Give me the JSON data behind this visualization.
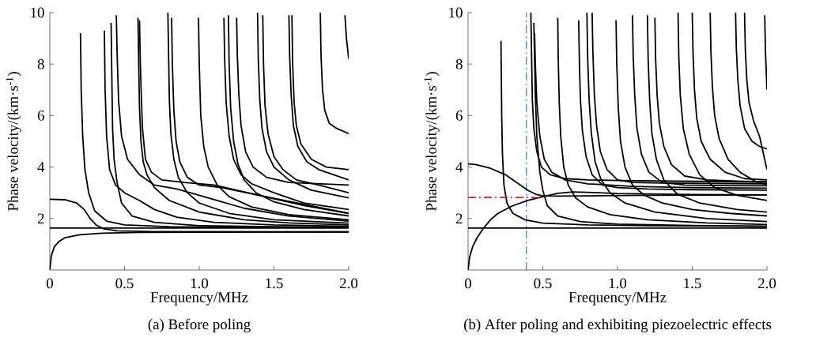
{
  "chart_data": [
    {
      "type": "line",
      "title": "(a) Before poling",
      "xlabel": "Frequency/MHz",
      "ylabel": "Phase velocity/(km·s$^{-1}$)",
      "color": "#000000",
      "xlim": [
        0,
        2
      ],
      "ylim": [
        0,
        10
      ],
      "xticks": [
        {
          "value": 0,
          "label": "0"
        },
        {
          "value": 0.5,
          "label": "0.5"
        },
        {
          "value": 1.0,
          "label": "1.0"
        },
        {
          "value": 1.5,
          "label": "1.5"
        },
        {
          "value": 2.0,
          "label": "2.0"
        }
      ],
      "yticks": [
        2,
        4,
        6,
        8,
        10
      ],
      "series": [
        {
          "x": [
            0,
            2
          ],
          "values": [
            1.63,
            1.63
          ]
        },
        {
          "x": [
            0,
            0.01,
            0.03,
            0.06,
            0.1,
            0.2,
            0.35,
            0.6,
            1.0,
            2.0
          ],
          "values": [
            0,
            0.55,
            0.9,
            1.1,
            1.25,
            1.37,
            1.43,
            1.46,
            1.47,
            1.48
          ]
        },
        {
          "x": [
            0,
            0.1,
            0.18,
            0.23,
            0.27,
            0.31,
            0.36,
            0.45,
            0.7,
            2.0
          ],
          "values": [
            2.75,
            2.73,
            2.6,
            2.35,
            2.0,
            1.75,
            1.6,
            1.52,
            1.49,
            1.48
          ]
        },
        {
          "x": [
            0.205,
            0.21,
            0.22,
            0.235,
            0.26,
            0.3,
            0.38,
            0.5,
            0.8,
            1.2,
            2.0
          ],
          "values": [
            9.2,
            7.0,
            5.2,
            3.9,
            3.0,
            2.3,
            1.9,
            1.75,
            1.68,
            1.66,
            1.65
          ]
        },
        {
          "x": [
            0.365,
            0.37,
            0.38,
            0.4,
            0.44,
            0.5,
            0.6,
            0.7,
            0.85,
            1.1,
            1.5,
            2.0
          ],
          "values": [
            9.3,
            7.0,
            5.2,
            3.9,
            3.3,
            3.0,
            2.7,
            2.35,
            2.05,
            1.85,
            1.75,
            1.7
          ]
        },
        {
          "x": [
            0.41,
            0.415,
            0.42,
            0.43,
            0.45,
            0.48,
            0.55,
            0.7,
            1.0,
            1.5,
            2.0
          ],
          "values": [
            9.6,
            7.5,
            5.5,
            4.3,
            3.4,
            2.6,
            2.1,
            1.85,
            1.72,
            1.68,
            1.66
          ]
        },
        {
          "x": [
            0.445,
            0.45,
            0.46,
            0.48,
            0.52,
            0.6,
            0.7,
            0.85,
            1.0,
            1.3,
            1.6,
            2.0
          ],
          "values": [
            9.9,
            8.5,
            6.6,
            5.2,
            4.3,
            3.7,
            3.3,
            3.15,
            2.9,
            2.4,
            2.1,
            1.9
          ]
        },
        {
          "x": [
            0.59,
            0.595,
            0.6,
            0.61,
            0.625,
            0.65,
            0.7,
            0.8,
            1.0,
            1.3,
            1.6,
            2.0
          ],
          "values": [
            9.8,
            8.0,
            6.3,
            5.0,
            4.2,
            3.7,
            3.2,
            2.7,
            2.25,
            1.95,
            1.83,
            1.75
          ]
        },
        {
          "x": [
            0.6,
            0.605,
            0.612,
            0.62,
            0.64,
            0.68,
            0.75,
            0.9,
            1.1,
            1.4,
            2.0
          ],
          "values": [
            9.7,
            8.2,
            6.8,
            5.5,
            4.3,
            3.8,
            3.5,
            3.4,
            3.3,
            2.9,
            2.2
          ]
        },
        {
          "x": [
            0.79,
            0.795,
            0.8,
            0.81,
            0.83,
            0.86,
            0.92,
            1.0,
            1.2,
            1.5,
            2.0
          ],
          "values": [
            10,
            8.3,
            6.6,
            5.3,
            4.3,
            3.6,
            3.0,
            2.6,
            2.2,
            1.95,
            1.82
          ]
        },
        {
          "x": [
            0.815,
            0.82,
            0.83,
            0.845,
            0.87,
            0.92,
            1.0,
            1.15,
            1.4,
            1.7,
            2.0
          ],
          "values": [
            9.8,
            8.0,
            6.2,
            5.0,
            4.2,
            3.6,
            3.3,
            3.2,
            2.9,
            2.5,
            2.2
          ]
        },
        {
          "x": [
            0.995,
            1.0,
            1.01,
            1.03,
            1.06,
            1.12,
            1.2,
            1.35,
            1.6,
            2.0
          ],
          "values": [
            9.8,
            8.0,
            6.0,
            4.8,
            4.0,
            3.3,
            2.85,
            2.45,
            2.15,
            1.95
          ]
        },
        {
          "x": [
            1.165,
            1.17,
            1.18,
            1.2,
            1.23,
            1.28,
            1.35,
            1.5,
            1.7,
            2.0
          ],
          "values": [
            9.8,
            8.2,
            6.5,
            5.2,
            4.3,
            3.7,
            3.35,
            3.0,
            2.6,
            2.35
          ]
        },
        {
          "x": [
            1.195,
            1.2,
            1.21,
            1.23,
            1.26,
            1.3,
            1.38,
            1.5,
            1.7,
            2.0
          ],
          "values": [
            9.9,
            8.0,
            6.3,
            5.0,
            4.1,
            3.5,
            3.0,
            2.65,
            2.35,
            2.1
          ]
        },
        {
          "x": [
            1.25,
            1.255,
            1.265,
            1.28,
            1.31,
            1.36,
            1.45,
            1.6,
            1.8,
            2.0
          ],
          "values": [
            9.8,
            8.3,
            6.8,
            5.6,
            4.6,
            4.0,
            3.6,
            3.4,
            3.35,
            3.3
          ]
        },
        {
          "x": [
            1.39,
            1.395,
            1.405,
            1.42,
            1.45,
            1.5,
            1.6,
            1.75,
            2.0
          ],
          "values": [
            10,
            8.2,
            6.6,
            5.5,
            4.6,
            4.0,
            3.5,
            3.1,
            2.8
          ]
        },
        {
          "x": [
            1.425,
            1.43,
            1.44,
            1.46,
            1.5,
            1.56,
            1.65,
            1.8,
            2.0
          ],
          "values": [
            9.9,
            8.0,
            6.4,
            5.3,
            4.4,
            3.9,
            3.5,
            3.3,
            3.0
          ]
        },
        {
          "x": [
            1.6,
            1.605,
            1.615,
            1.63,
            1.66,
            1.72,
            1.8,
            1.9,
            2.0
          ],
          "values": [
            9.9,
            8.3,
            6.8,
            5.6,
            4.8,
            4.2,
            3.9,
            3.7,
            3.5
          ]
        },
        {
          "x": [
            1.62,
            1.625,
            1.635,
            1.65,
            1.68,
            1.75,
            1.85,
            2.0
          ],
          "values": [
            9.9,
            8.0,
            6.5,
            5.6,
            4.9,
            4.3,
            4.0,
            3.9
          ]
        },
        {
          "x": [
            1.81,
            1.815,
            1.825,
            1.84,
            1.87,
            1.92,
            2.0
          ],
          "values": [
            10,
            8.3,
            7.0,
            6.2,
            5.7,
            5.5,
            5.3
          ]
        },
        {
          "x": [
            1.975,
            1.985,
            2.0
          ],
          "values": [
            9.9,
            9.0,
            8.2
          ]
        }
      ]
    },
    {
      "type": "line",
      "title": "(b) After poling and exhibiting piezoelectric effects",
      "xlabel": "Frequency/MHz",
      "ylabel": "Phase velocity/(km·s$^{-1}$)",
      "color": "#000000",
      "xlim": [
        0,
        2
      ],
      "ylim": [
        0,
        10
      ],
      "xticks": [
        {
          "value": 0,
          "label": "0"
        },
        {
          "value": 0.5,
          "label": "0.5"
        },
        {
          "value": 1.0,
          "label": "1.0"
        },
        {
          "value": 1.5,
          "label": "1.5"
        },
        {
          "value": 2.0,
          "label": "2.0"
        }
      ],
      "yticks": [
        2,
        4,
        6,
        8,
        10
      ],
      "ref_lines": [
        {
          "axis": "x",
          "value": 0.39,
          "color": "#4a86c8",
          "line_style": "dashed"
        }
      ],
      "series": [
        {
          "x": [
            0,
            2
          ],
          "values": [
            1.63,
            1.63
          ]
        },
        {
          "x": [
            0,
            0.01,
            0.03,
            0.06,
            0.1,
            0.15,
            0.2,
            0.3,
            0.4,
            0.5,
            0.6,
            0.7,
            0.8,
            1.0,
            1.5,
            2.0
          ],
          "values": [
            0,
            0.5,
            0.9,
            1.25,
            1.6,
            1.95,
            2.2,
            2.5,
            2.7,
            2.85,
            2.98,
            3.03,
            3.02,
            2.97,
            2.93,
            2.92
          ]
        },
        {
          "x": [
            0,
            0.05,
            0.15,
            0.25,
            0.3,
            0.35,
            0.4,
            0.45,
            0.5,
            0.6,
            0.8,
            1.2,
            2.0
          ],
          "values": [
            4.12,
            4.1,
            3.95,
            3.7,
            3.5,
            3.3,
            3.1,
            2.95,
            2.88,
            2.87,
            2.88,
            2.9,
            2.92
          ]
        },
        {
          "x": [
            0.22,
            0.222,
            0.225,
            0.23,
            0.24,
            0.26,
            0.3,
            0.38,
            0.5,
            0.8,
            1.2,
            2.0
          ],
          "values": [
            8.9,
            7.8,
            6.0,
            4.5,
            3.3,
            2.6,
            2.2,
            1.95,
            1.82,
            1.75,
            1.72,
            1.7
          ]
        },
        {
          "x": [
            0.42,
            0.425,
            0.43,
            0.44,
            0.46,
            0.49,
            0.55,
            0.65,
            0.8,
            1.0,
            1.4,
            2.0
          ],
          "values": [
            10,
            8.3,
            6.6,
            5.5,
            4.6,
            4.0,
            3.7,
            3.55,
            3.5,
            3.48,
            3.45,
            3.42
          ]
        },
        {
          "x": [
            0.44,
            0.445,
            0.45,
            0.46,
            0.48,
            0.5,
            0.53,
            0.6,
            0.75,
            1.0,
            1.5,
            2.0
          ],
          "values": [
            9.6,
            8.2,
            6.8,
            5.2,
            3.8,
            3.1,
            2.5,
            2.1,
            1.88,
            1.78,
            1.73,
            1.7
          ]
        },
        {
          "x": [
            0.445,
            0.45,
            0.46,
            0.48,
            0.51,
            0.56,
            0.65,
            0.8,
            1.1,
            1.5,
            2.0
          ],
          "values": [
            9.2,
            8.0,
            6.5,
            5.2,
            4.3,
            3.8,
            3.5,
            3.35,
            3.25,
            3.2,
            3.18
          ]
        },
        {
          "x": [
            0.6,
            0.603,
            0.61,
            0.62,
            0.64,
            0.67,
            0.72,
            0.8,
            0.95,
            1.2,
            1.6,
            2.0
          ],
          "values": [
            9.8,
            8.3,
            6.5,
            5.2,
            4.0,
            3.3,
            2.8,
            2.45,
            2.15,
            1.95,
            1.83,
            1.77
          ]
        },
        {
          "x": [
            0.74,
            0.745,
            0.752,
            0.765,
            0.79,
            0.83,
            0.9,
            1.0,
            1.2,
            1.5,
            2.0
          ],
          "values": [
            9.7,
            8.0,
            6.6,
            5.4,
            4.4,
            3.7,
            3.3,
            3.2,
            3.15,
            3.12,
            3.1
          ]
        },
        {
          "x": [
            0.795,
            0.8,
            0.81,
            0.825,
            0.85,
            0.89,
            0.95,
            1.05,
            1.25,
            1.6,
            2.0
          ],
          "values": [
            10,
            8.3,
            6.6,
            5.3,
            4.2,
            3.5,
            3.0,
            2.6,
            2.25,
            2.0,
            1.88
          ]
        },
        {
          "x": [
            0.83,
            0.835,
            0.845,
            0.86,
            0.885,
            0.93,
            1.0,
            1.1,
            1.3,
            1.6,
            2.0
          ],
          "values": [
            10,
            8.5,
            6.8,
            5.6,
            4.6,
            3.9,
            3.5,
            3.4,
            3.38,
            3.36,
            3.35
          ]
        },
        {
          "x": [
            0.99,
            0.995,
            1.005,
            1.02,
            1.05,
            1.1,
            1.18,
            1.3,
            1.5,
            1.75,
            2.0
          ],
          "values": [
            9.7,
            8.0,
            6.3,
            5.0,
            4.0,
            3.3,
            2.9,
            2.6,
            2.35,
            2.2,
            2.1
          ]
        },
        {
          "x": [
            1.1,
            1.105,
            1.115,
            1.13,
            1.16,
            1.21,
            1.3,
            1.45,
            1.7,
            2.0
          ],
          "values": [
            9.9,
            8.3,
            6.8,
            5.5,
            4.5,
            3.8,
            3.4,
            3.3,
            3.28,
            3.27
          ]
        },
        {
          "x": [
            1.2,
            1.205,
            1.215,
            1.23,
            1.26,
            1.31,
            1.4,
            1.55,
            1.8,
            2.0
          ],
          "values": [
            9.9,
            8.2,
            6.6,
            5.3,
            4.3,
            3.5,
            2.95,
            2.6,
            2.35,
            2.25
          ]
        },
        {
          "x": [
            1.25,
            1.255,
            1.265,
            1.28,
            1.31,
            1.36,
            1.45,
            1.6,
            1.8,
            2.0
          ],
          "values": [
            9.8,
            8.2,
            6.8,
            5.7,
            4.8,
            4.1,
            3.65,
            3.5,
            3.45,
            3.42
          ]
        },
        {
          "x": [
            1.405,
            1.41,
            1.42,
            1.44,
            1.48,
            1.55,
            1.65,
            1.8,
            2.0
          ],
          "values": [
            10,
            8.3,
            6.8,
            5.5,
            4.5,
            3.7,
            3.2,
            2.9,
            2.7
          ]
        },
        {
          "x": [
            1.5,
            1.505,
            1.515,
            1.53,
            1.56,
            1.62,
            1.72,
            1.85,
            2.0
          ],
          "values": [
            10,
            8.5,
            7.0,
            5.9,
            5.0,
            4.3,
            3.8,
            3.55,
            3.5
          ]
        },
        {
          "x": [
            1.62,
            1.625,
            1.635,
            1.65,
            1.68,
            1.74,
            1.82,
            1.92,
            2.0
          ],
          "values": [
            10,
            8.5,
            7.1,
            6.0,
            5.1,
            4.3,
            3.8,
            3.45,
            3.3
          ]
        },
        {
          "x": [
            1.79,
            1.795,
            1.805,
            1.82,
            1.85,
            1.9,
            1.95,
            2.0
          ],
          "values": [
            10,
            8.6,
            7.4,
            6.4,
            5.5,
            5.0,
            4.8,
            4.7
          ]
        },
        {
          "x": [
            1.85,
            1.855,
            1.865,
            1.88,
            1.91,
            1.95,
            2.0
          ],
          "values": [
            10,
            8.6,
            7.4,
            6.5,
            5.8,
            5.2,
            3.9
          ]
        },
        {
          "x": [
            1.985,
            1.99,
            2.0
          ],
          "values": [
            9.9,
            8.5,
            7.0
          ]
        },
        {
          "x": [
            0,
            0.48
          ],
          "values": [
            2.82,
            2.82
          ],
          "color": "#c0302a",
          "line_style": "dashed"
        }
      ]
    }
  ]
}
